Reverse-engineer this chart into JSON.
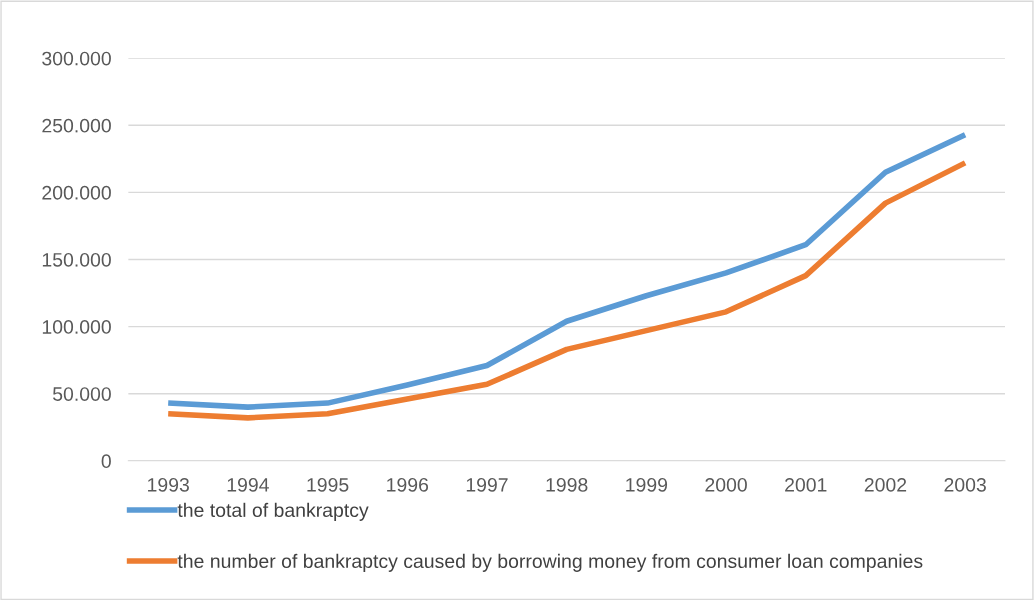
{
  "chart_data": {
    "type": "line",
    "categories": [
      "1993",
      "1994",
      "1995",
      "1996",
      "1997",
      "1998",
      "1999",
      "2000",
      "2001",
      "2002",
      "2003"
    ],
    "series": [
      {
        "name": "the total of bankraptcy",
        "color": "#5b9bd5",
        "values": [
          43000,
          40000,
          43000,
          56500,
          71000,
          104000,
          123000,
          140000,
          161000,
          215000,
          243000
        ]
      },
      {
        "name": "the number of bankraptcy caused by borrowing money from consumer loan companies",
        "color": "#ed7d31",
        "values": [
          35000,
          32000,
          35000,
          46000,
          57000,
          83000,
          97000,
          111000,
          138000,
          192000,
          222000
        ]
      }
    ],
    "ylim": [
      0,
      300000
    ],
    "yticks": [
      0,
      {
        "value": 50000,
        "label": "50.000"
      },
      {
        "value": 100000,
        "label": "100.000"
      },
      {
        "value": 150000,
        "label": "150.000"
      },
      {
        "value": 200000,
        "label": "200.000"
      },
      {
        "value": 250000,
        "label": "250.000"
      },
      {
        "value": 300000,
        "label": "300.000"
      }
    ],
    "grid": "y",
    "legend": "bottom",
    "marker": "none",
    "line_style": "solid"
  }
}
